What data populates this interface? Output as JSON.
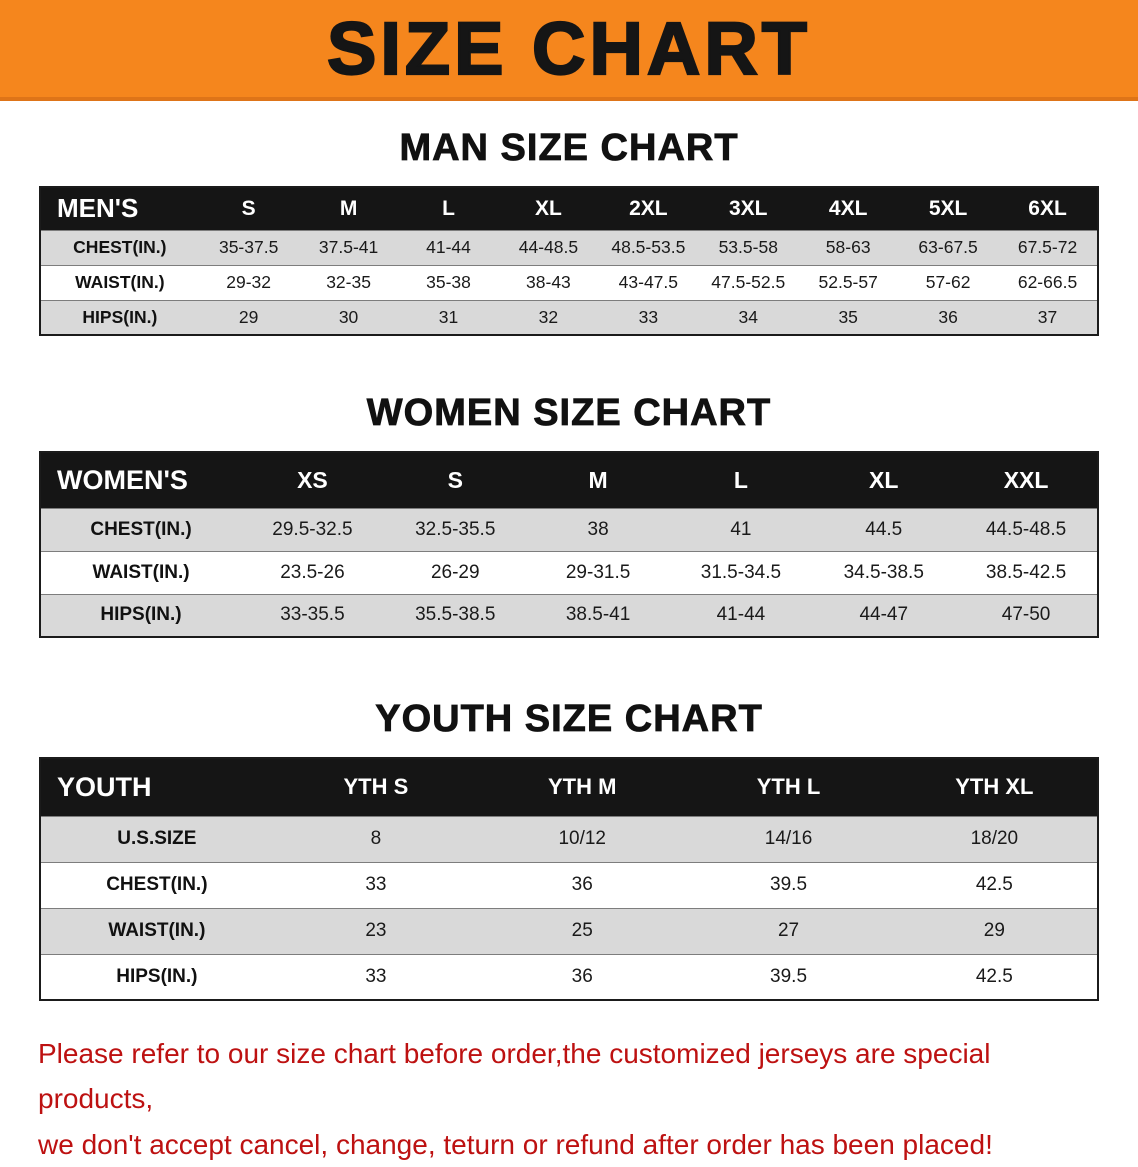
{
  "banner": {
    "title": "SIZE CHART",
    "bg_color": "#f5861d"
  },
  "sections": [
    {
      "id": "men",
      "heading": "MAN SIZE CHART",
      "table": {
        "corner": "MEN'S",
        "columns": [
          "S",
          "M",
          "L",
          "XL",
          "2XL",
          "3XL",
          "4XL",
          "5XL",
          "6XL"
        ],
        "rows": [
          {
            "label": "CHEST(IN.)",
            "values": [
              "35-37.5",
              "37.5-41",
              "41-44",
              "44-48.5",
              "48.5-53.5",
              "53.5-58",
              "58-63",
              "63-67.5",
              "67.5-72"
            ]
          },
          {
            "label": "WAIST(IN.)",
            "values": [
              "29-32",
              "32-35",
              "35-38",
              "38-43",
              "43-47.5",
              "47.5-52.5",
              "52.5-57",
              "57-62",
              "62-66.5"
            ]
          },
          {
            "label": "HIPS(IN.)",
            "values": [
              "29",
              "30",
              "31",
              "32",
              "33",
              "34",
              "35",
              "36",
              "37"
            ]
          }
        ]
      }
    },
    {
      "id": "women",
      "heading": "WOMEN SIZE CHART",
      "table": {
        "corner": "WOMEN'S",
        "columns": [
          "XS",
          "S",
          "M",
          "L",
          "XL",
          "XXL"
        ],
        "rows": [
          {
            "label": "CHEST(IN.)",
            "values": [
              "29.5-32.5",
              "32.5-35.5",
              "38",
              "41",
              "44.5",
              "44.5-48.5"
            ]
          },
          {
            "label": "WAIST(IN.)",
            "values": [
              "23.5-26",
              "26-29",
              "29-31.5",
              "31.5-34.5",
              "34.5-38.5",
              "38.5-42.5"
            ]
          },
          {
            "label": "HIPS(IN.)",
            "values": [
              "33-35.5",
              "35.5-38.5",
              "38.5-41",
              "41-44",
              "44-47",
              "47-50"
            ]
          }
        ]
      }
    },
    {
      "id": "youth",
      "heading": "YOUTH SIZE CHART",
      "table": {
        "corner": "YOUTH",
        "columns": [
          "YTH S",
          "YTH M",
          "YTH L",
          "YTH XL"
        ],
        "rows": [
          {
            "label": "U.S.SIZE",
            "values": [
              "8",
              "10/12",
              "14/16",
              "18/20"
            ]
          },
          {
            "label": "CHEST(IN.)",
            "values": [
              "33",
              "36",
              "39.5",
              "42.5"
            ]
          },
          {
            "label": "WAIST(IN.)",
            "values": [
              "23",
              "25",
              "27",
              "29"
            ]
          },
          {
            "label": "HIPS(IN.)",
            "values": [
              "33",
              "36",
              "39.5",
              "42.5"
            ]
          }
        ]
      }
    }
  ],
  "disclaimer": {
    "color": "#bd1111",
    "line1": "Please refer to our size chart before order,the customized jerseys are special products,",
    "line2": "we don't accept cancel, change, teturn or refund after order has been placed!"
  }
}
